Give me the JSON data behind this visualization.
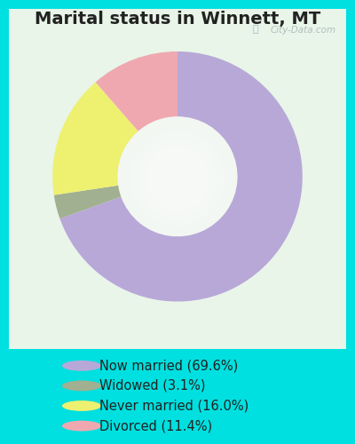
{
  "title": "Marital status in Winnett, MT",
  "slices": [
    69.6,
    3.1,
    16.0,
    11.4
  ],
  "labels": [
    "Now married (69.6%)",
    "Widowed (3.1%)",
    "Never married (16.0%)",
    "Divorced (11.4%)"
  ],
  "colors": [
    "#b8a8d8",
    "#a0b090",
    "#eef070",
    "#f0a8b0"
  ],
  "startangle": 90,
  "bg_outer": "#00e0e0",
  "watermark": "City-Data.com",
  "title_fontsize": 14,
  "legend_fontsize": 10.5
}
